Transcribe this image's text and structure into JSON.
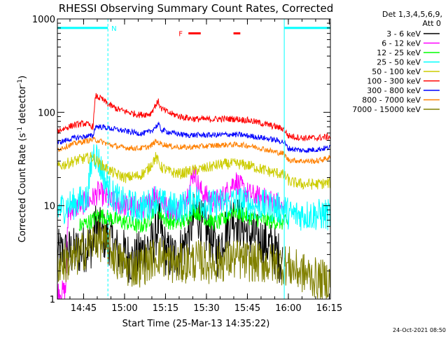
{
  "chart_data": {
    "type": "line",
    "title": "RHESSI Observing Summary Count Rates, Corrected",
    "xlabel": "Start Time (25-Mar-13 14:35:22)",
    "ylabel_main": "Corrected Count Rate (s",
    "ylabel_sup1": "-1",
    "ylabel_mid": " detector",
    "ylabel_sup2": "-1",
    "ylabel_end": ")",
    "yscale": "log",
    "ylim": [
      1,
      1000
    ],
    "y_ticks": [
      {
        "value": 1,
        "label": "1"
      },
      {
        "value": 10,
        "label": "10"
      },
      {
        "value": 100,
        "label": "100"
      },
      {
        "value": 1000,
        "label": "1000"
      }
    ],
    "x_unit": "minutes since 14:35:22",
    "xlim": [
      0,
      100
    ],
    "x_ticks": [
      {
        "value": 9.6,
        "label": "14:45"
      },
      {
        "value": 24.6,
        "label": "15:00"
      },
      {
        "value": 39.6,
        "label": "15:15"
      },
      {
        "value": 54.6,
        "label": "15:30"
      },
      {
        "value": 69.6,
        "label": "15:45"
      },
      {
        "value": 84.6,
        "label": "16:00"
      },
      {
        "value": 99.6,
        "label": "16:15"
      }
    ],
    "detector_header": "Det 1,3,4,5,6,9,",
    "attenuator": "Att 0",
    "legend_position": "right",
    "legend": [
      {
        "label": "3 - 6 keV",
        "color": "#000000"
      },
      {
        "label": "6 - 12 keV",
        "color": "#ff00ff"
      },
      {
        "label": "12 - 25 keV",
        "color": "#00ff00"
      },
      {
        "label": "25 - 50 keV",
        "color": "#00ffff"
      },
      {
        "label": "50 - 100 keV",
        "color": "#cccc00"
      },
      {
        "label": "100 - 300 keV",
        "color": "#ff0000"
      },
      {
        "label": "300 - 800 keV",
        "color": "#0000ff"
      },
      {
        "label": "800 - 7000 keV",
        "color": "#ff8000"
      },
      {
        "label": "7000 - 15000 keV",
        "color": "#808000"
      }
    ],
    "markers": {
      "night_label": "N",
      "night_intervals": [
        [
          0,
          18.5
        ],
        [
          83.1,
          100
        ]
      ],
      "night_level": 800,
      "flare_label": "F",
      "flare_intervals": [
        [
          48,
          52.5
        ],
        [
          64.5,
          67
        ]
      ],
      "flare_level": 700,
      "color_night": "#00ffff",
      "color_flare": "#ff0000"
    },
    "series": [
      {
        "name": "3 - 6 keV",
        "color": "#000000",
        "noise": 0.55,
        "points": [
          [
            0,
            3
          ],
          [
            7,
            3.2
          ],
          [
            13,
            4
          ],
          [
            14,
            6
          ],
          [
            16,
            5
          ],
          [
            18,
            4.5
          ],
          [
            20,
            4
          ],
          [
            22,
            3.2
          ],
          [
            25,
            3
          ],
          [
            28,
            2.5
          ],
          [
            32,
            3.5
          ],
          [
            35,
            4
          ],
          [
            37,
            6.5
          ],
          [
            38,
            5
          ],
          [
            40,
            3
          ],
          [
            43,
            2.8
          ],
          [
            46,
            3.5
          ],
          [
            49,
            6
          ],
          [
            51,
            9
          ],
          [
            53,
            6
          ],
          [
            55,
            5
          ],
          [
            57,
            4
          ],
          [
            59,
            3
          ],
          [
            61,
            5
          ],
          [
            64,
            8
          ],
          [
            66,
            7
          ],
          [
            68,
            6
          ],
          [
            70,
            5
          ],
          [
            73,
            4.5
          ],
          [
            76,
            4
          ],
          [
            79,
            3.5
          ],
          [
            82.5,
            2.5
          ]
        ]
      },
      {
        "name": "6 - 12 keV",
        "color": "#ff00ff",
        "noise": 0.25,
        "points": [
          [
            0,
            1.2
          ],
          [
            3,
            1.2
          ],
          [
            4,
            9
          ],
          [
            8,
            10
          ],
          [
            13,
            12
          ],
          [
            15,
            14
          ],
          [
            18,
            12
          ],
          [
            20,
            11
          ],
          [
            25,
            10
          ],
          [
            30,
            9.5
          ],
          [
            33,
            10
          ],
          [
            36,
            14
          ],
          [
            38,
            11
          ],
          [
            40,
            9.5
          ],
          [
            45,
            9
          ],
          [
            48,
            14
          ],
          [
            50,
            24
          ],
          [
            51,
            19
          ],
          [
            52,
            15
          ],
          [
            54,
            13
          ],
          [
            57,
            11
          ],
          [
            60,
            12
          ],
          [
            63,
            15
          ],
          [
            65,
            19
          ],
          [
            67,
            16
          ],
          [
            69,
            14
          ],
          [
            71,
            13
          ],
          [
            75,
            12
          ],
          [
            80,
            11
          ],
          [
            83,
            9
          ]
        ]
      },
      {
        "name": "12 - 25 keV",
        "color": "#00ff00",
        "noise": 0.18,
        "points": [
          [
            8,
            6
          ],
          [
            13,
            7
          ],
          [
            15,
            8
          ],
          [
            18,
            7.5
          ],
          [
            22,
            7
          ],
          [
            26,
            6.5
          ],
          [
            30,
            6
          ],
          [
            33,
            6.5
          ],
          [
            36,
            10
          ],
          [
            38,
            8
          ],
          [
            40,
            7
          ],
          [
            43,
            6.5
          ],
          [
            47,
            7
          ],
          [
            50,
            9
          ],
          [
            53,
            8
          ],
          [
            55,
            7
          ],
          [
            58,
            6.5
          ],
          [
            61,
            7
          ],
          [
            64,
            9
          ],
          [
            66,
            8.5
          ],
          [
            68,
            8
          ],
          [
            71,
            7.5
          ],
          [
            75,
            7
          ],
          [
            80,
            6.8
          ],
          [
            84.5,
            6.5
          ]
        ]
      },
      {
        "name": "25 - 50 keV",
        "color": "#00ffff",
        "noise": 0.35,
        "points": [
          [
            0,
            9
          ],
          [
            4,
            10
          ],
          [
            8,
            11
          ],
          [
            11,
            12
          ],
          [
            13,
            38
          ],
          [
            14.5,
            34
          ],
          [
            16,
            25
          ],
          [
            18,
            17
          ],
          [
            20,
            13
          ],
          [
            23,
            11
          ],
          [
            27,
            10
          ],
          [
            30,
            9.5
          ],
          [
            33,
            10
          ],
          [
            36,
            12
          ],
          [
            39,
            10
          ],
          [
            43,
            9.5
          ],
          [
            47,
            10
          ],
          [
            50,
            12
          ],
          [
            53,
            11
          ],
          [
            56,
            10
          ],
          [
            60,
            10.5
          ],
          [
            64,
            11
          ],
          [
            68,
            11
          ],
          [
            72,
            10
          ],
          [
            76,
            10
          ],
          [
            80,
            9.5
          ],
          [
            83.5,
            9
          ],
          [
            85,
            8
          ],
          [
            90,
            8
          ],
          [
            95,
            8
          ],
          [
            100,
            8
          ]
        ]
      },
      {
        "name": "50 - 100 keV",
        "color": "#cccc00",
        "noise": 0.12,
        "points": [
          [
            0,
            26
          ],
          [
            3,
            28
          ],
          [
            6,
            30
          ],
          [
            10,
            32
          ],
          [
            13,
            33
          ],
          [
            15,
            29
          ],
          [
            18,
            25
          ],
          [
            21,
            22
          ],
          [
            25,
            20
          ],
          [
            30,
            21
          ],
          [
            33,
            24
          ],
          [
            36,
            33
          ],
          [
            38,
            26
          ],
          [
            41,
            23
          ],
          [
            45,
            22
          ],
          [
            50,
            24
          ],
          [
            54,
            25
          ],
          [
            58,
            27
          ],
          [
            62,
            28
          ],
          [
            66,
            28
          ],
          [
            70,
            27
          ],
          [
            74,
            25
          ],
          [
            78,
            23
          ],
          [
            82,
            22
          ],
          [
            84,
            20
          ],
          [
            85,
            18
          ],
          [
            90,
            17
          ],
          [
            95,
            17
          ],
          [
            100,
            17.5
          ]
        ]
      },
      {
        "name": "100 - 300 keV",
        "color": "#ff0000",
        "noise": 0.07,
        "points": [
          [
            0,
            63
          ],
          [
            3,
            68
          ],
          [
            6,
            73
          ],
          [
            10,
            76
          ],
          [
            13,
            70
          ],
          [
            14,
            150
          ],
          [
            16,
            140
          ],
          [
            19,
            120
          ],
          [
            22,
            108
          ],
          [
            26,
            100
          ],
          [
            30,
            94
          ],
          [
            34,
            96
          ],
          [
            36,
            120
          ],
          [
            37,
            130
          ],
          [
            38,
            110
          ],
          [
            41,
            98
          ],
          [
            45,
            90
          ],
          [
            50,
            85
          ],
          [
            55,
            84
          ],
          [
            60,
            85
          ],
          [
            65,
            85
          ],
          [
            70,
            82
          ],
          [
            75,
            76
          ],
          [
            80,
            70
          ],
          [
            83,
            66
          ],
          [
            84.5,
            56
          ],
          [
            90,
            53
          ],
          [
            95,
            53
          ],
          [
            100,
            55
          ]
        ]
      },
      {
        "name": "300 - 800 keV",
        "color": "#0000ff",
        "noise": 0.06,
        "points": [
          [
            0,
            47
          ],
          [
            3,
            50
          ],
          [
            6,
            53
          ],
          [
            10,
            55
          ],
          [
            13,
            56
          ],
          [
            14,
            71
          ],
          [
            17,
            69
          ],
          [
            21,
            66
          ],
          [
            26,
            62
          ],
          [
            31,
            59
          ],
          [
            34,
            62
          ],
          [
            36,
            70
          ],
          [
            37,
            74
          ],
          [
            38,
            65
          ],
          [
            42,
            60
          ],
          [
            47,
            57
          ],
          [
            52,
            57
          ],
          [
            58,
            57
          ],
          [
            63,
            58
          ],
          [
            68,
            57
          ],
          [
            74,
            54
          ],
          [
            79,
            51
          ],
          [
            83,
            48
          ],
          [
            84.5,
            41
          ],
          [
            90,
            39
          ],
          [
            95,
            40
          ],
          [
            100,
            42
          ]
        ]
      },
      {
        "name": "800 - 7000 keV",
        "color": "#ff8000",
        "noise": 0.06,
        "points": [
          [
            0,
            40
          ],
          [
            3,
            43
          ],
          [
            6,
            46
          ],
          [
            10,
            49
          ],
          [
            13,
            51
          ],
          [
            15,
            50
          ],
          [
            19,
            45
          ],
          [
            24,
            42
          ],
          [
            30,
            41
          ],
          [
            34,
            43
          ],
          [
            36,
            49
          ],
          [
            38,
            46
          ],
          [
            42,
            43
          ],
          [
            47,
            42
          ],
          [
            52,
            43
          ],
          [
            57,
            44
          ],
          [
            62,
            45
          ],
          [
            66,
            45
          ],
          [
            70,
            44
          ],
          [
            75,
            41
          ],
          [
            79,
            38
          ],
          [
            83,
            36
          ],
          [
            84.5,
            31
          ],
          [
            90,
            30
          ],
          [
            95,
            30
          ],
          [
            100,
            33
          ]
        ]
      },
      {
        "name": "7000 - 15000 keV",
        "color": "#808000",
        "noise": 0.45,
        "points": [
          [
            0,
            2.4
          ],
          [
            5,
            2.5
          ],
          [
            8,
            3
          ],
          [
            12,
            3.8
          ],
          [
            14,
            4.5
          ],
          [
            18,
            3.8
          ],
          [
            22,
            2.6
          ],
          [
            26,
            2.2
          ],
          [
            30,
            2.2
          ],
          [
            34,
            2.6
          ],
          [
            37,
            3
          ],
          [
            40,
            2.6
          ],
          [
            44,
            2.3
          ],
          [
            48,
            2.5
          ],
          [
            52,
            2.6
          ],
          [
            56,
            2.4
          ],
          [
            60,
            2.5
          ],
          [
            64,
            2.7
          ],
          [
            68,
            2.6
          ],
          [
            72,
            2.5
          ],
          [
            76,
            2.4
          ],
          [
            80,
            2.4
          ],
          [
            84,
            2.3
          ],
          [
            88,
            2
          ],
          [
            92,
            1.8
          ],
          [
            96,
            1.6
          ],
          [
            100,
            1.6
          ]
        ]
      }
    ]
  },
  "footer": {
    "timestamp": "24-Oct-2021 08:50"
  }
}
